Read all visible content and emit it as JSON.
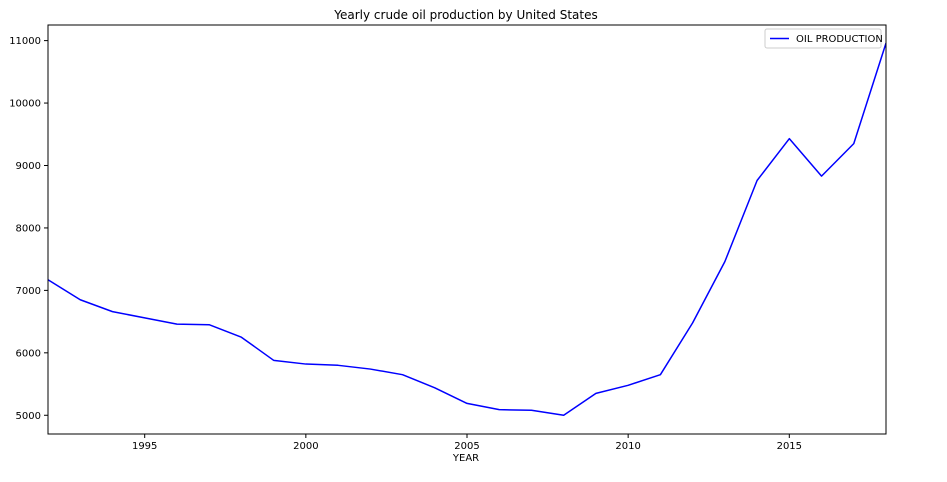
{
  "chart_data": {
    "type": "line",
    "title": "Yearly crude oil production by United States",
    "xlabel": "YEAR",
    "ylabel": "",
    "xlim": [
      1992,
      2018
    ],
    "ylim": [
      4700,
      11250
    ],
    "x_ticks": [
      1995,
      2000,
      2005,
      2010,
      2015
    ],
    "y_ticks": [
      5000,
      6000,
      7000,
      8000,
      9000,
      10000,
      11000
    ],
    "grid": false,
    "legend_position": "top-right",
    "series": [
      {
        "name": "OIL PRODUCTION",
        "color": "#0000ff",
        "x": [
          1992,
          1993,
          1994,
          1995,
          1996,
          1997,
          1998,
          1999,
          2000,
          2001,
          2002,
          2003,
          2004,
          2005,
          2006,
          2007,
          2008,
          2009,
          2010,
          2011,
          2012,
          2013,
          2014,
          2015,
          2016,
          2017,
          2018
        ],
        "y": [
          7170,
          6850,
          6660,
          6560,
          6460,
          6450,
          6250,
          5880,
          5820,
          5800,
          5740,
          5650,
          5440,
          5190,
          5090,
          5080,
          5000,
          5350,
          5480,
          5650,
          6480,
          7460,
          8760,
          9430,
          8830,
          9350,
          10960
        ]
      }
    ]
  }
}
